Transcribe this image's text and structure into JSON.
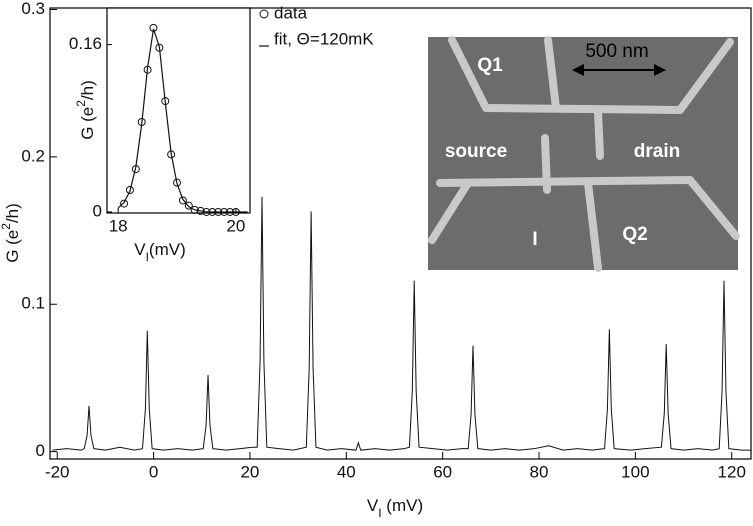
{
  "chart_data": [
    {
      "type": "line",
      "xlabel": [
        "V",
        "I",
        " (mV)"
      ],
      "ylabel": [
        "G (e",
        "2",
        "/h)"
      ],
      "xlim": [
        -21.5,
        124
      ],
      "ylim": [
        -0.005,
        0.301
      ],
      "xticks": [
        -20,
        0,
        20,
        40,
        60,
        80,
        100,
        120
      ],
      "yticks": [
        0,
        0.1,
        0.2,
        0.3
      ],
      "x": [
        -21,
        -18,
        -15,
        -14.4,
        -13.8,
        -13.4,
        -13.0,
        -12.4,
        -10,
        -7,
        -4,
        -2.3,
        -1.7,
        -1.3,
        -0.9,
        -0.3,
        2,
        5,
        8,
        10.3,
        10.9,
        11.3,
        11.7,
        12.3,
        15,
        18,
        20.5,
        21.5,
        22.1,
        22.5,
        22.9,
        23.5,
        26,
        29,
        31.7,
        32.3,
        32.7,
        33.1,
        33.7,
        36,
        39,
        42,
        42.5,
        43,
        46,
        49,
        52,
        53.1,
        53.7,
        54.1,
        54.5,
        55.1,
        58,
        61,
        64,
        65.3,
        65.9,
        66.3,
        66.7,
        67.3,
        70,
        73,
        76,
        79,
        82,
        85,
        88,
        91,
        93.6,
        94.2,
        94.6,
        95,
        95.6,
        99,
        102,
        105.4,
        106,
        106.4,
        106.8,
        107.4,
        110,
        113,
        116,
        117.4,
        118,
        118.4,
        118.8,
        119.4,
        122,
        124
      ],
      "series": [
        {
          "color": "#111111",
          "values": [
            0.001,
            0.002,
            0.001,
            0.002,
            0.011,
            0.031,
            0.011,
            0.002,
            0.001,
            0.003,
            0.001,
            0.002,
            0.029,
            0.082,
            0.029,
            0.002,
            0.001,
            0.002,
            0.001,
            0.002,
            0.018,
            0.052,
            0.018,
            0.002,
            0.001,
            0.002,
            0.003,
            0.003,
            0.061,
            0.173,
            0.061,
            0.003,
            0.002,
            0.001,
            0.003,
            0.057,
            0.163,
            0.057,
            0.003,
            0.001,
            0.002,
            0.001,
            0.006,
            0.001,
            0.002,
            0.001,
            0.002,
            0.003,
            0.041,
            0.116,
            0.041,
            0.003,
            0.002,
            0.001,
            0.002,
            0.002,
            0.025,
            0.072,
            0.025,
            0.002,
            0.001,
            0.002,
            0.001,
            0.002,
            0.004,
            0.001,
            0.002,
            0.001,
            0.002,
            0.029,
            0.083,
            0.029,
            0.002,
            0.001,
            0.002,
            0.003,
            0.026,
            0.073,
            0.026,
            0.002,
            0.001,
            0.002,
            0.001,
            0.002,
            0.041,
            0.116,
            0.041,
            0.002,
            0.001,
            0.001
          ]
        }
      ]
    },
    {
      "type": "scatter",
      "xlabel": [
        "V",
        "I",
        "(mV)"
      ],
      "ylabel": [
        "G (e",
        "2",
        "/h)"
      ],
      "xlim": [
        17.81,
        20.24
      ],
      "ylim": [
        -0.001,
        0.195
      ],
      "xticks": [
        18,
        20
      ],
      "yticks": [
        0,
        0.16
      ],
      "series": [
        {
          "name": "data",
          "style": "markers",
          "color": "#111111",
          "x": [
            18.1,
            18.2,
            18.3,
            18.4,
            18.5,
            18.6,
            18.7,
            18.8,
            18.9,
            19.0,
            19.1,
            19.2,
            19.3,
            19.4,
            19.5,
            19.6,
            19.7,
            19.8,
            19.9,
            20.0
          ],
          "values": [
            0.008,
            0.021,
            0.041,
            0.086,
            0.136,
            0.176,
            0.157,
            0.106,
            0.055,
            0.028,
            0.011,
            0.006,
            0.002,
            0.001,
            0,
            0,
            0,
            0,
            0,
            0
          ]
        },
        {
          "name": "fit, Θ=120mK",
          "style": "line",
          "color": "#111111",
          "x": [
            18.0,
            18.1,
            18.2,
            18.3,
            18.4,
            18.5,
            18.6,
            18.7,
            18.8,
            18.9,
            19.0,
            19.1,
            19.2,
            19.3,
            19.4,
            19.5,
            19.7,
            20.0,
            20.2
          ],
          "values": [
            0.004,
            0.009,
            0.02,
            0.043,
            0.084,
            0.138,
            0.175,
            0.158,
            0.105,
            0.056,
            0.027,
            0.012,
            0.005,
            0.002,
            0.001,
            0,
            0,
            0,
            0
          ]
        }
      ]
    }
  ],
  "sem_image": {
    "labels": [
      "Q1",
      "500 nm",
      "source",
      "drain",
      "I",
      "Q2"
    ]
  }
}
